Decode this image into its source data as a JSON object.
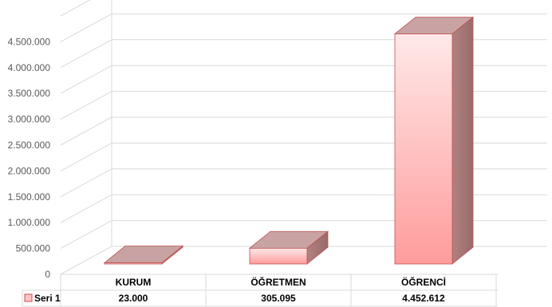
{
  "chart_data": {
    "type": "bar",
    "style": "3d-column",
    "categories": [
      "KURUM",
      "ÖĞRETMEN",
      "ÖĞRENCİ"
    ],
    "series": [
      {
        "name": "Seri 1",
        "values": [
          23000,
          305095,
          4452612
        ]
      }
    ],
    "value_labels": [
      "23.000",
      "305.095",
      "4.452.612"
    ],
    "y_ticks": [
      "0",
      "500.000",
      "1.000.000",
      "1.500.000",
      "2.000.000",
      "2.500.000",
      "3.000.000",
      "3.500.000",
      "4.000.000",
      "4.500.000"
    ],
    "ylim": [
      0,
      5000000
    ],
    "grid": true,
    "legend": "data-table-bottom",
    "colors": {
      "bar_front_top": "#ffe6e6",
      "bar_front_bottom": "#ff9c9c",
      "bar_side": "#a87474",
      "bar_top": "#c9a3a3",
      "bar_outline": "#c0504d",
      "grid": "#d9d9d9"
    }
  }
}
